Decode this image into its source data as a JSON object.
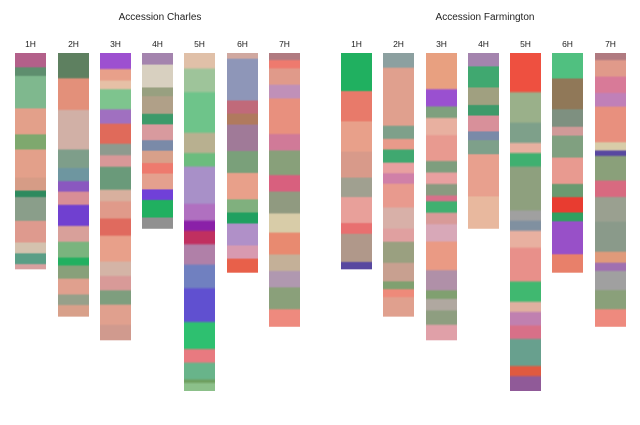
{
  "chart_data": [
    {
      "type": "heatmap",
      "title": "Accession Charles",
      "categories": [
        "1H",
        "2H",
        "3H",
        "4H",
        "5H",
        "6H",
        "7H"
      ],
      "relative_lengths": [
        0.64,
        0.78,
        0.85,
        0.52,
        1.0,
        0.65,
        0.81
      ],
      "chromosomes": [
        {
          "name": "1H",
          "segments": [
            [
              0,
              "#b3608a"
            ],
            [
              0.07,
              "#5e8e6e"
            ],
            [
              0.11,
              "#7fb88e"
            ],
            [
              0.26,
              "#e3a08a"
            ],
            [
              0.38,
              "#7ea86e"
            ],
            [
              0.45,
              "#e3a08a"
            ],
            [
              0.58,
              "#d69c86"
            ],
            [
              0.64,
              "#2e8a5e"
            ],
            [
              0.67,
              "#8a9e8a"
            ],
            [
              0.78,
              "#de9a8e"
            ],
            [
              0.88,
              "#d4c2ae"
            ],
            [
              0.93,
              "#5a9e86"
            ],
            [
              0.98,
              "#d8a0a0"
            ]
          ]
        },
        {
          "name": "2H",
          "segments": [
            [
              0,
              "#5e8060"
            ],
            [
              0.1,
              "#e3907a"
            ],
            [
              0.22,
              "#d1b0a6"
            ],
            [
              0.37,
              "#7e9e8a"
            ],
            [
              0.44,
              "#6e96a0"
            ],
            [
              0.49,
              "#8a58c0"
            ],
            [
              0.53,
              "#d88e96"
            ],
            [
              0.58,
              "#7040d0"
            ],
            [
              0.66,
              "#d8a09a"
            ],
            [
              0.72,
              "#7ab47e"
            ],
            [
              0.78,
              "#22b060"
            ],
            [
              0.81,
              "#88a07a"
            ],
            [
              0.86,
              "#e0a08e"
            ],
            [
              0.92,
              "#96a08a"
            ],
            [
              0.96,
              "#d8a08a"
            ]
          ]
        },
        {
          "name": "3H",
          "segments": [
            [
              0,
              "#9d50d0"
            ],
            [
              0.06,
              "#e8a08a"
            ],
            [
              0.1,
              "#e6c0a6"
            ],
            [
              0.13,
              "#7ec48e"
            ],
            [
              0.2,
              "#a070c0"
            ],
            [
              0.25,
              "#e06a5a"
            ],
            [
              0.32,
              "#8e9a8e"
            ],
            [
              0.36,
              "#d89898"
            ],
            [
              0.4,
              "#6a9a7a"
            ],
            [
              0.48,
              "#d8b09e"
            ],
            [
              0.52,
              "#e09a8a"
            ],
            [
              0.58,
              "#e06a5e"
            ],
            [
              0.64,
              "#e8a08a"
            ],
            [
              0.73,
              "#d4b4a6"
            ],
            [
              0.78,
              "#d89a98"
            ],
            [
              0.83,
              "#7e9e7e"
            ],
            [
              0.88,
              "#e0a08e"
            ],
            [
              0.95,
              "#d09a8e"
            ]
          ]
        },
        {
          "name": "4H",
          "segments": [
            [
              0,
              "#a484ae"
            ],
            [
              0.07,
              "#d8d0c0"
            ],
            [
              0.2,
              "#98a080"
            ],
            [
              0.25,
              "#b0a088"
            ],
            [
              0.35,
              "#3c9a6a"
            ],
            [
              0.41,
              "#d89a9e"
            ],
            [
              0.5,
              "#7a8aa8"
            ],
            [
              0.56,
              "#d8a08a"
            ],
            [
              0.63,
              "#ee7a6e"
            ],
            [
              0.69,
              "#e4a08e"
            ],
            [
              0.78,
              "#7040d8"
            ],
            [
              0.84,
              "#20b060"
            ],
            [
              0.94,
              "#909090"
            ]
          ]
        },
        {
          "name": "5H",
          "segments": [
            [
              0,
              "#e0c0a8"
            ],
            [
              0.05,
              "#9ec49a"
            ],
            [
              0.12,
              "#6ec48a"
            ],
            [
              0.24,
              "#b8b090"
            ],
            [
              0.3,
              "#6cbc7e"
            ],
            [
              0.34,
              "#a890c8"
            ],
            [
              0.45,
              "#b070c0"
            ],
            [
              0.5,
              "#8a20a8"
            ],
            [
              0.53,
              "#c03060"
            ],
            [
              0.57,
              "#b080a8"
            ],
            [
              0.63,
              "#7080c0"
            ],
            [
              0.7,
              "#6050d0"
            ],
            [
              0.8,
              "#2ec070"
            ],
            [
              0.88,
              "#e87a80"
            ],
            [
              0.92,
              "#68b48a"
            ],
            [
              0.97,
              "#6e9e5e"
            ],
            [
              0.98,
              "#8cc08a"
            ]
          ]
        },
        {
          "name": "6H",
          "segments": [
            [
              0,
              "#d0a8a0"
            ],
            [
              0.03,
              "#8e96b8"
            ],
            [
              0.22,
              "#c06a7a"
            ],
            [
              0.28,
              "#b07a5e"
            ],
            [
              0.33,
              "#a07a98"
            ],
            [
              0.45,
              "#7aa07a"
            ],
            [
              0.55,
              "#e8a08a"
            ],
            [
              0.67,
              "#80b07e"
            ],
            [
              0.73,
              "#20a060"
            ],
            [
              0.78,
              "#b090c8"
            ],
            [
              0.88,
              "#d89ab0"
            ],
            [
              0.94,
              "#e8604a"
            ]
          ]
        },
        {
          "name": "7H",
          "segments": [
            [
              0,
              "#b07a80"
            ],
            [
              0.03,
              "#ee7a6e"
            ],
            [
              0.06,
              "#e09a8a"
            ],
            [
              0.12,
              "#c090b8"
            ],
            [
              0.17,
              "#e8907e"
            ],
            [
              0.3,
              "#d07a98"
            ],
            [
              0.36,
              "#88a07a"
            ],
            [
              0.45,
              "#d8607e"
            ],
            [
              0.51,
              "#909a80"
            ],
            [
              0.59,
              "#d8cca8"
            ],
            [
              0.66,
              "#e88a70"
            ],
            [
              0.74,
              "#c4b098"
            ],
            [
              0.8,
              "#b098b0"
            ],
            [
              0.86,
              "#8aa07a"
            ],
            [
              0.94,
              "#ee8a7e"
            ]
          ]
        }
      ]
    },
    {
      "type": "heatmap",
      "title": "Accession Farmington",
      "categories": [
        "1H",
        "2H",
        "3H",
        "4H",
        "5H",
        "6H",
        "7H"
      ],
      "relative_lengths": [
        0.64,
        0.78,
        0.85,
        0.52,
        1.0,
        0.65,
        0.81
      ],
      "chromosomes": [
        {
          "name": "1H",
          "segments": [
            [
              0,
              "#20b060"
            ],
            [
              0.18,
              "#e87a6a"
            ],
            [
              0.32,
              "#e8a08a"
            ],
            [
              0.46,
              "#d89a8a"
            ],
            [
              0.58,
              "#a0a090"
            ],
            [
              0.67,
              "#e8a09a"
            ],
            [
              0.79,
              "#e87070"
            ],
            [
              0.84,
              "#b0988a"
            ],
            [
              0.97,
              "#5848a0"
            ]
          ]
        },
        {
          "name": "2H",
          "segments": [
            [
              0,
              "#8ca0a0"
            ],
            [
              0.06,
              "#e0a08e"
            ],
            [
              0.28,
              "#7ea08a"
            ],
            [
              0.33,
              "#e89a8a"
            ],
            [
              0.37,
              "#40a870"
            ],
            [
              0.42,
              "#e8a0a0"
            ],
            [
              0.46,
              "#d080a8"
            ],
            [
              0.5,
              "#e89a8e"
            ],
            [
              0.59,
              "#d8b0a8"
            ],
            [
              0.67,
              "#e0a0a0"
            ],
            [
              0.72,
              "#9aa080"
            ],
            [
              0.8,
              "#c8a090"
            ],
            [
              0.87,
              "#80a070"
            ],
            [
              0.9,
              "#ee8a7a"
            ],
            [
              0.93,
              "#e0a08e"
            ]
          ]
        },
        {
          "name": "3H",
          "segments": [
            [
              0,
              "#e8a080"
            ],
            [
              0.13,
              "#9a50d0"
            ],
            [
              0.19,
              "#7ea07e"
            ],
            [
              0.23,
              "#e8b0a0"
            ],
            [
              0.29,
              "#e89a90"
            ],
            [
              0.38,
              "#7e9e7e"
            ],
            [
              0.42,
              "#e8a0a0"
            ],
            [
              0.46,
              "#8a9a80"
            ],
            [
              0.5,
              "#d8708a"
            ],
            [
              0.52,
              "#40b070"
            ],
            [
              0.56,
              "#d89a98"
            ],
            [
              0.6,
              "#d8a8b8"
            ],
            [
              0.66,
              "#ea9a84"
            ],
            [
              0.76,
              "#b090a8"
            ],
            [
              0.83,
              "#80a070"
            ],
            [
              0.86,
              "#b0a8a0"
            ],
            [
              0.9,
              "#8e9e80"
            ],
            [
              0.95,
              "#e0a0a8"
            ]
          ]
        },
        {
          "name": "4H",
          "segments": [
            [
              0,
              "#a484ae"
            ],
            [
              0.08,
              "#40a870"
            ],
            [
              0.2,
              "#a0a080"
            ],
            [
              0.3,
              "#3e9a6a"
            ],
            [
              0.36,
              "#d8909a"
            ],
            [
              0.45,
              "#7a8aa8"
            ],
            [
              0.5,
              "#7ea08a"
            ],
            [
              0.58,
              "#e8a08e"
            ],
            [
              0.82,
              "#e8b89e"
            ]
          ]
        },
        {
          "name": "5H",
          "segments": [
            [
              0,
              "#ee5040"
            ],
            [
              0.12,
              "#9ab08a"
            ],
            [
              0.21,
              "#7ea08a"
            ],
            [
              0.27,
              "#e8b0a0"
            ],
            [
              0.3,
              "#40b070"
            ],
            [
              0.34,
              "#8ea07e"
            ],
            [
              0.47,
              "#a0a0a0"
            ],
            [
              0.5,
              "#8090a0"
            ],
            [
              0.53,
              "#e8b0a0"
            ],
            [
              0.58,
              "#e8908a"
            ],
            [
              0.68,
              "#40b870"
            ],
            [
              0.74,
              "#e0b0a0"
            ],
            [
              0.77,
              "#c080b0"
            ],
            [
              0.81,
              "#d87088"
            ],
            [
              0.85,
              "#68a08e"
            ],
            [
              0.93,
              "#e05a40"
            ],
            [
              0.96,
              "#905a98"
            ]
          ]
        },
        {
          "name": "6H",
          "segments": [
            [
              0,
              "#50c080"
            ],
            [
              0.12,
              "#907858"
            ],
            [
              0.26,
              "#7e9080"
            ],
            [
              0.34,
              "#d09a98"
            ],
            [
              0.38,
              "#80a080"
            ],
            [
              0.48,
              "#e89a90"
            ],
            [
              0.6,
              "#6a9a70"
            ],
            [
              0.66,
              "#e83c30"
            ],
            [
              0.73,
              "#30a060"
            ],
            [
              0.77,
              "#9850c8"
            ],
            [
              0.92,
              "#e8806a"
            ]
          ]
        },
        {
          "name": "7H",
          "segments": [
            [
              0,
              "#b07a80"
            ],
            [
              0.03,
              "#e09a8a"
            ],
            [
              0.09,
              "#d87a98"
            ],
            [
              0.15,
              "#c080b8"
            ],
            [
              0.2,
              "#e8907e"
            ],
            [
              0.33,
              "#d8cca8"
            ],
            [
              0.36,
              "#5848a0"
            ],
            [
              0.38,
              "#8aa07a"
            ],
            [
              0.47,
              "#d86a80"
            ],
            [
              0.53,
              "#9aa090"
            ],
            [
              0.62,
              "#8a9a8a"
            ],
            [
              0.73,
              "#e09a7a"
            ],
            [
              0.77,
              "#a070b0"
            ],
            [
              0.8,
              "#a0a0a0"
            ],
            [
              0.87,
              "#8aa07a"
            ],
            [
              0.94,
              "#ee8a7e"
            ]
          ]
        }
      ]
    }
  ]
}
